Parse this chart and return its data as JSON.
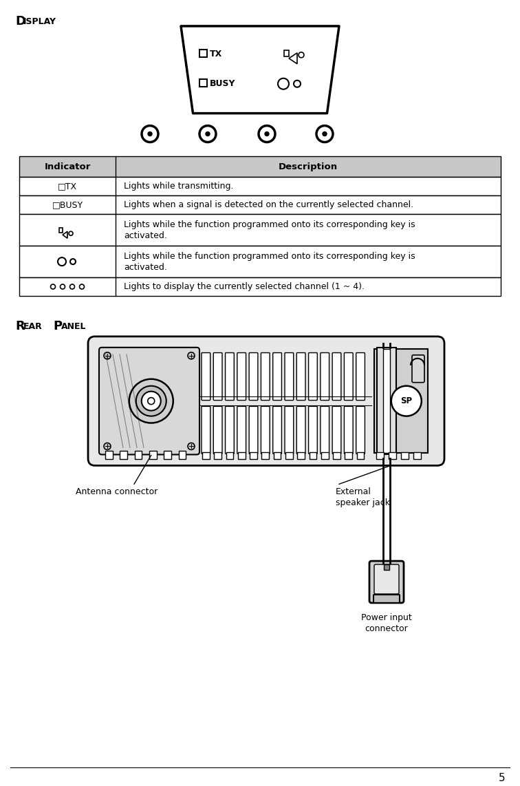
{
  "title_display_D": "D",
  "title_display_rest": "ISPLAY",
  "title_rear_R": "R",
  "title_rear_EAR": "EAR",
  "title_rear_P": "P",
  "title_rear_ANEL": "ANEL",
  "table_header_col1": "Indicator",
  "table_header_col2": "Description",
  "row1_ind": "□TX",
  "row1_desc": "Lights while transmitting.",
  "row2_ind": "□BUSY",
  "row2_desc": "Lights when a signal is detected on the currently selected channel.",
  "row3_desc": "Lights while the function programmed onto its corresponding key is\nactivated.",
  "row4_desc": "Lights while the function programmed onto its corresponding key is\nactivated.",
  "row5_desc": "Lights to display the currently selected channel (1 ~ 4).",
  "label_antenna": "Antenna connector",
  "label_external_1": "External",
  "label_external_2": "speaker jack",
  "label_power_1": "Power input",
  "label_power_2": "connector",
  "page_number": "5",
  "bg_color": "#ffffff",
  "table_header_bg": "#c8c8c8",
  "panel_bg": "#f0f0f0",
  "rear_bg": "#e8e8e8",
  "rear_dark": "#c8c8c8"
}
